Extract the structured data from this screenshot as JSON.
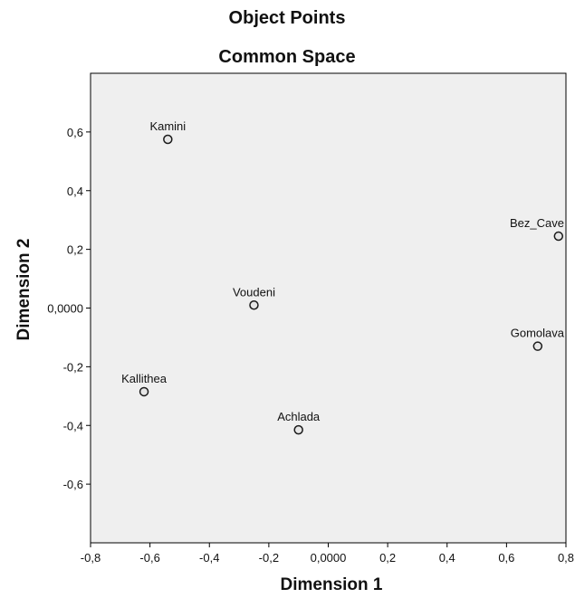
{
  "chart_data": {
    "type": "scatter",
    "title": "Object Points",
    "subtitle": "Common Space",
    "xlabel": "Dimension 1",
    "ylabel": "Dimension 2",
    "xlim": [
      -0.8,
      0.8
    ],
    "ylim": [
      -0.8,
      0.8
    ],
    "x_ticks": [
      -0.8,
      -0.6,
      -0.4,
      -0.2,
      0.0,
      0.2,
      0.4,
      0.6,
      0.8
    ],
    "x_tick_labels": [
      "-0,8",
      "-0,6",
      "-0,4",
      "-0,2",
      "0,0000",
      "0,2",
      "0,4",
      "0,6",
      "0,8"
    ],
    "y_ticks": [
      -0.6,
      -0.4,
      -0.2,
      0.0,
      0.2,
      0.4,
      0.6
    ],
    "y_tick_labels": [
      "-0,6",
      "-0,4",
      "-0,2",
      "0,0000",
      "0,2",
      "0,4",
      "0,6"
    ],
    "grid": false,
    "colors": {
      "plot_background": "#efefef",
      "plot_border": "#000000",
      "marker_fill": "#e6e6e6",
      "marker_stroke": "#1a1a1a"
    },
    "points": [
      {
        "label": "Kamini",
        "x": -0.54,
        "y": 0.575
      },
      {
        "label": "Bez_Cave",
        "x": 0.775,
        "y": 0.245
      },
      {
        "label": "Voudeni",
        "x": -0.25,
        "y": 0.01
      },
      {
        "label": "Gomolava",
        "x": 0.705,
        "y": -0.13
      },
      {
        "label": "Kallithea",
        "x": -0.62,
        "y": -0.285
      },
      {
        "label": "Achlada",
        "x": -0.1,
        "y": -0.415
      }
    ]
  }
}
